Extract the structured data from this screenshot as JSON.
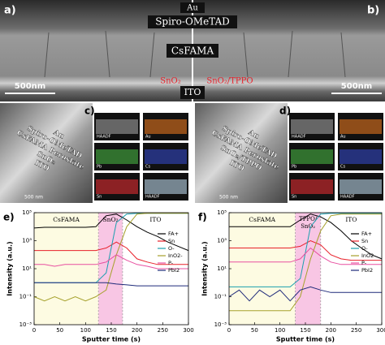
{
  "panels": {
    "a": {
      "letter": "a)",
      "au": "Au",
      "spiro": "Spiro-OMeTAD",
      "absorber": "CsFAMA",
      "etl_left": "SnO₂",
      "etl_right": "SnO₂/TPPO",
      "ito": "ITO",
      "scale_left": "500nm",
      "scale_right": "500nm",
      "letter_b": "b)"
    },
    "c": {
      "letter": "c)",
      "layers": [
        "Au",
        "Spiro-OMeTAD",
        "CsFAMA Peroskite",
        "SnO₂",
        "ITO"
      ],
      "scale": "500 nm",
      "maps": [
        "HAADF",
        "Au",
        "Pb",
        "Cs",
        "Sn",
        "HAADF"
      ]
    },
    "d": {
      "letter": "d)",
      "layers": [
        "Au",
        "Spiro-OMeTAD",
        "CsFAMA Peroskite",
        "SnO₂/TPPO",
        "ITO"
      ],
      "scale": "500 nm",
      "maps": [
        "HAADF",
        "Au",
        "Pb",
        "Cs",
        "Sn",
        "HAADF"
      ]
    }
  },
  "chart_data": [
    {
      "type": "line",
      "panel": "e)",
      "xlabel": "Sputter time (s)",
      "ylabel": "Intensity (a.u.)",
      "x": [
        0,
        20,
        40,
        60,
        80,
        100,
        120,
        140,
        160,
        180,
        200,
        220,
        240,
        260,
        280,
        300
      ],
      "xlim": [
        0,
        300
      ],
      "xticks": [
        0,
        50,
        100,
        150,
        200,
        250,
        300
      ],
      "ylim": [
        0.001,
        100000
      ],
      "log_y": true,
      "yticks": [
        {
          "value": 0.001,
          "label": "10⁻³"
        },
        {
          "value": 0.1,
          "label": "10⁻¹"
        },
        {
          "value": 10,
          "label": "10¹"
        },
        {
          "value": 1000,
          "label": "10³"
        },
        {
          "value": 100000,
          "label": "10⁵"
        }
      ],
      "regions": [
        {
          "label": "CsFAMA",
          "start": 0,
          "end": 125,
          "color": "#fdfbe2"
        },
        {
          "label": "SnO₂",
          "start": 125,
          "end": 172,
          "color": "#f8c6e4"
        },
        {
          "label": "ITO",
          "start": 172,
          "end": 300,
          "color": "#ffffff"
        }
      ],
      "legend": "right",
      "series": [
        {
          "name": "FA+",
          "color": "#000000",
          "values": [
            8000,
            9000,
            9000,
            9000,
            9000,
            9000,
            10000,
            60000,
            80000,
            30000,
            10000,
            4000,
            2000,
            800,
            400,
            200
          ]
        },
        {
          "name": "Sn",
          "color": "#e8202a",
          "values": [
            200,
            200,
            200,
            200,
            200,
            200,
            200,
            300,
            800,
            300,
            50,
            30,
            20,
            20,
            20,
            20
          ]
        },
        {
          "name": "O-",
          "color": "#1a9fae",
          "values": [
            1,
            1,
            1,
            1,
            1,
            1,
            1,
            5,
            20000,
            80000,
            90000,
            90000,
            90000,
            90000,
            90000,
            90000
          ]
        },
        {
          "name": "InO2-",
          "color": "#a6a12c",
          "values": [
            0.1,
            0.05,
            0.1,
            0.05,
            0.1,
            0.05,
            0.1,
            0.3,
            100,
            10000,
            80000,
            90000,
            90000,
            90000,
            90000,
            90000
          ]
        },
        {
          "name": "P-",
          "color": "#e84fa0",
          "values": [
            20,
            20,
            15,
            20,
            20,
            20,
            20,
            30,
            100,
            40,
            20,
            15,
            10,
            10,
            10,
            10
          ]
        },
        {
          "name": "PbI2",
          "color": "#1f2a7a",
          "values": [
            1,
            1,
            1,
            1,
            1,
            1,
            1,
            1,
            0.8,
            0.7,
            0.6,
            0.6,
            0.6,
            0.6,
            0.6,
            0.6
          ]
        }
      ]
    },
    {
      "type": "line",
      "panel": "f)",
      "xlabel": "Sputter time (s)",
      "ylabel": "Intensity (a.u.)",
      "x": [
        0,
        20,
        40,
        60,
        80,
        100,
        120,
        140,
        160,
        180,
        200,
        220,
        240,
        260,
        280,
        300
      ],
      "xlim": [
        0,
        300
      ],
      "xticks": [
        0,
        50,
        100,
        150,
        200,
        250,
        300
      ],
      "ylim": [
        0.001,
        100000
      ],
      "log_y": true,
      "yticks": [
        {
          "value": 0.001,
          "label": "10⁻³"
        },
        {
          "value": 0.1,
          "label": "10⁻¹"
        },
        {
          "value": 10,
          "label": "10¹"
        },
        {
          "value": 1000,
          "label": "10³"
        },
        {
          "value": 100000,
          "label": "10⁵"
        }
      ],
      "regions": [
        {
          "label": "CsFAMA",
          "start": 0,
          "end": 130,
          "color": "#fdfbe2"
        },
        {
          "label": [
            "TPPO/",
            "SnO₂"
          ],
          "start": 130,
          "end": 180,
          "color": "#f8c6e4"
        },
        {
          "label": "ITO",
          "start": 180,
          "end": 300,
          "color": "#ffffff"
        }
      ],
      "legend": "right",
      "series": [
        {
          "name": "FA+",
          "color": "#000000",
          "values": [
            10000,
            10000,
            10000,
            10000,
            10000,
            10000,
            10000,
            30000,
            80000,
            50000,
            20000,
            5000,
            1000,
            300,
            100,
            50
          ]
        },
        {
          "name": "Sn",
          "color": "#e8202a",
          "values": [
            300,
            300,
            300,
            300,
            300,
            300,
            300,
            400,
            1000,
            500,
            100,
            50,
            40,
            40,
            40,
            40
          ]
        },
        {
          "name": "O-",
          "color": "#1a9fae",
          "values": [
            0.5,
            0.5,
            0.5,
            0.5,
            0.5,
            0.5,
            0.5,
            2,
            10000,
            80000,
            90000,
            90000,
            90000,
            90000,
            90000,
            90000
          ]
        },
        {
          "name": "InO2-",
          "color": "#a6a12c",
          "values": [
            0.01,
            0.01,
            0.01,
            0.01,
            0.01,
            0.01,
            0.01,
            0.1,
            50,
            5000,
            60000,
            80000,
            80000,
            80000,
            80000,
            80000
          ]
        },
        {
          "name": "P-",
          "color": "#e84fa0",
          "values": [
            30,
            30,
            30,
            30,
            30,
            30,
            30,
            50,
            300,
            80,
            30,
            20,
            20,
            20,
            20,
            20
          ]
        },
        {
          "name": "PbI2",
          "color": "#1f2a7a",
          "values": [
            0.1,
            0.3,
            0.05,
            0.3,
            0.1,
            0.3,
            0.05,
            0.3,
            0.5,
            0.3,
            0.2,
            0.2,
            0.2,
            0.2,
            0.2,
            0.2
          ]
        }
      ]
    }
  ]
}
